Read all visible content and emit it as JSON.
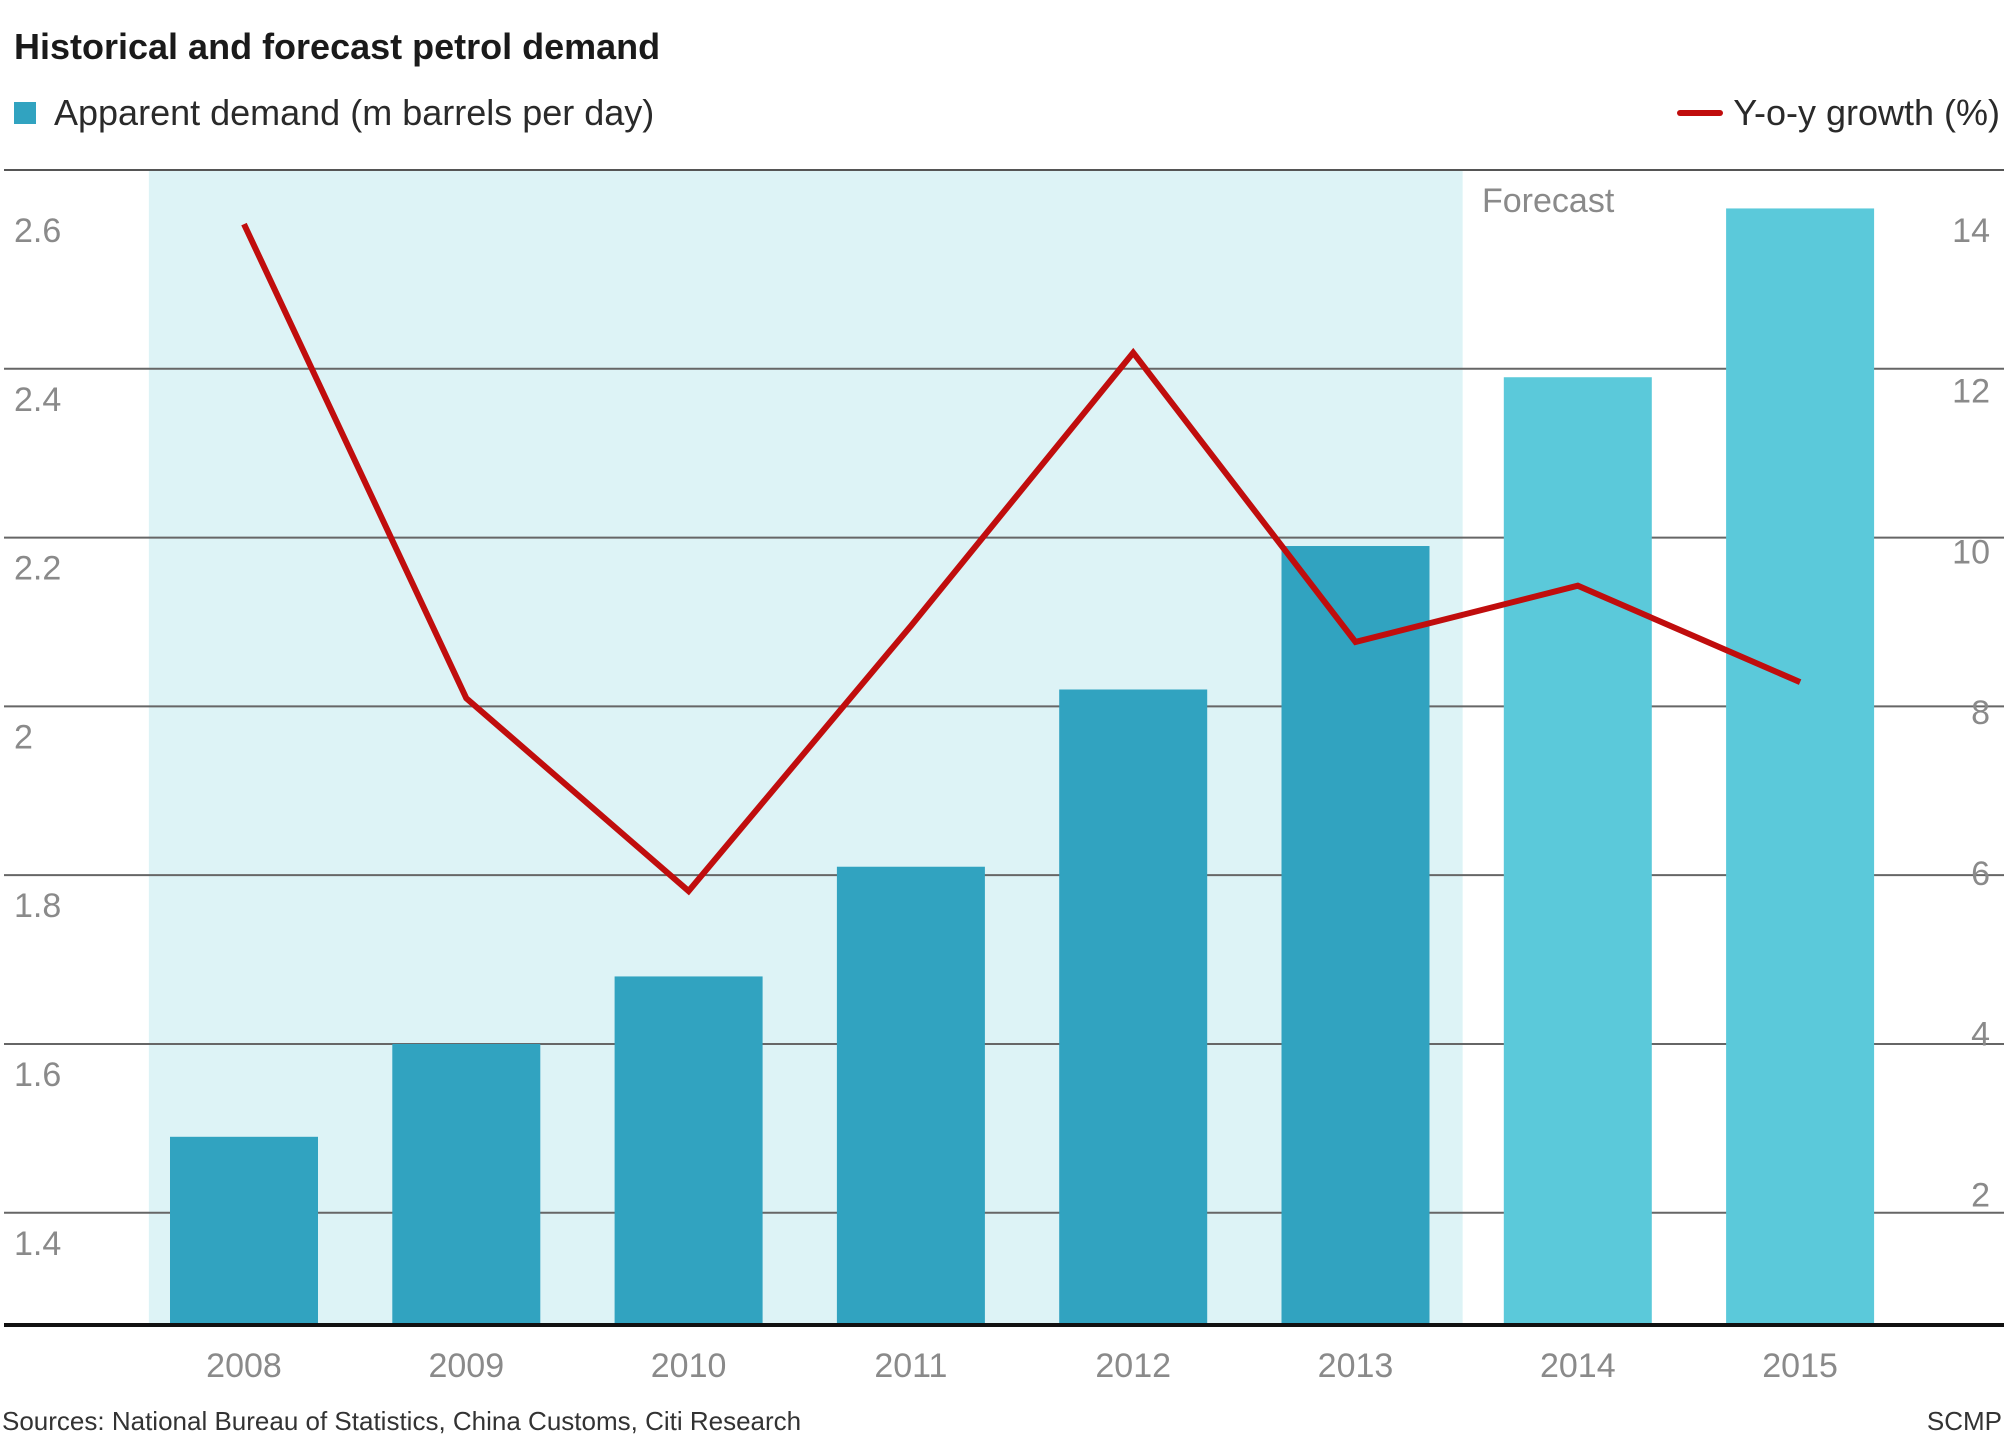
{
  "title": "Historical and forecast petrol demand",
  "legend": {
    "bars_label": "Apparent demand (m barrels per day)",
    "line_label": "Y-o-y growth (%)"
  },
  "footer": {
    "source": "Sources: National Bureau of Statistics, China Customs, Citi Research",
    "credit": "SCMP"
  },
  "chart_data": {
    "type": "bar",
    "title": "Historical and forecast petrol demand",
    "categories": [
      "2008",
      "2009",
      "2010",
      "2011",
      "2012",
      "2013",
      "2014",
      "2015"
    ],
    "series": [
      {
        "name": "Apparent demand (m barrels per day)",
        "type": "bar",
        "axis": "left",
        "values": [
          1.49,
          1.6,
          1.68,
          1.81,
          2.02,
          2.19,
          2.39,
          2.59
        ],
        "colors": [
          "#31a3c0",
          "#31a3c0",
          "#31a3c0",
          "#31a3c0",
          "#31a3c0",
          "#31a3c0",
          "#5bc9da",
          "#5bc9da"
        ]
      },
      {
        "name": "Y-o-y growth (%)",
        "type": "line",
        "axis": "right",
        "values": [
          13.7,
          7.8,
          5.4,
          8.7,
          12.1,
          8.5,
          9.2,
          8.0
        ],
        "color": "#c00d0d"
      }
    ],
    "y_left": {
      "min": 1.267,
      "max": 2.6,
      "ticks": [
        "2.6",
        "2.4",
        "2.2",
        "2",
        "1.8",
        "1.6",
        "1.4"
      ],
      "tick_values": [
        2.6,
        2.4,
        2.2,
        2.0,
        1.8,
        1.6,
        1.4
      ]
    },
    "y_right": {
      "min": 0,
      "max": 14,
      "ticks": [
        "14",
        "12",
        "10",
        "8",
        "6",
        "4",
        "2"
      ],
      "tick_values": [
        14,
        12,
        10,
        8,
        6,
        4,
        2
      ]
    },
    "forecast_label": "Forecast",
    "shaded_range": [
      "2008",
      "2013"
    ],
    "shade_color": "#ddf3f6",
    "grid": true,
    "legend_position": "top"
  }
}
